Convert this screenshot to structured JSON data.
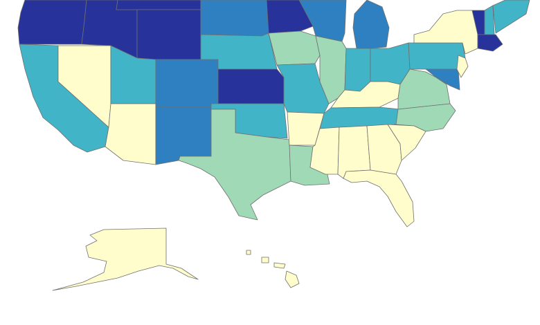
{
  "map": {
    "palette": [
      "#27339a",
      "#2f80c0",
      "#41b4c7",
      "#a0d9b5",
      "#fffdcb"
    ],
    "border_color": "#6f6f6f"
  }
}
